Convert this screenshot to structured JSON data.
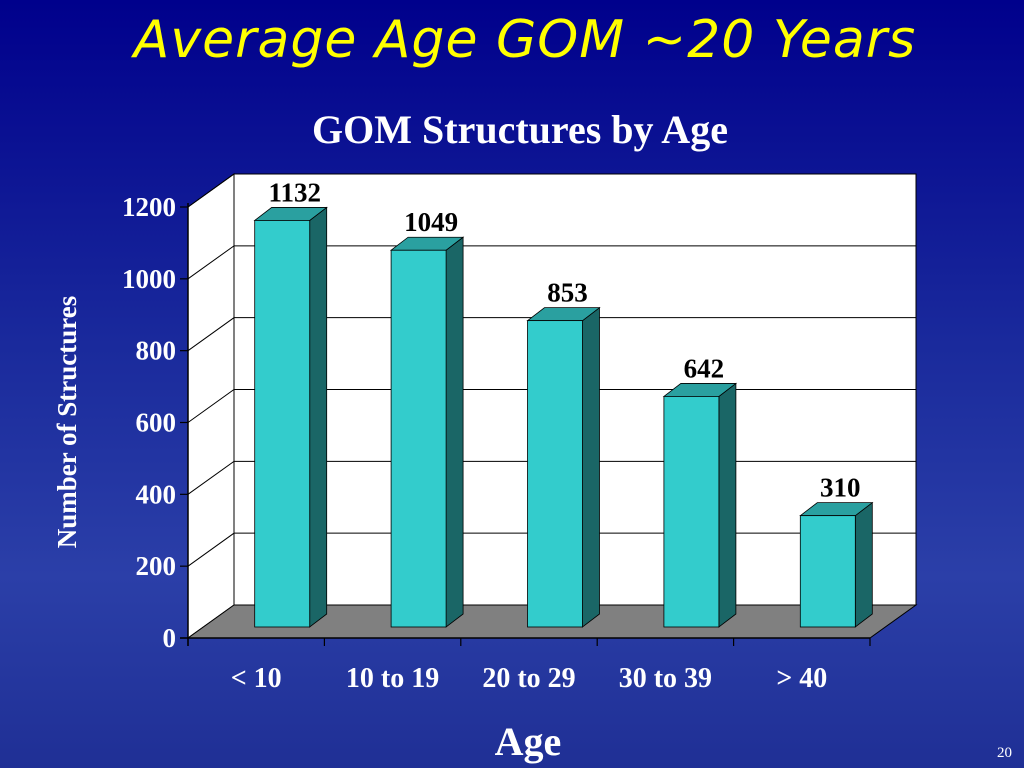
{
  "slide": {
    "title": "Average Age GOM ~20 Years",
    "page_number": "20"
  },
  "colors": {
    "background": "#1a2a9c",
    "title": "#ffff00",
    "bar_front": "#33cccc",
    "bar_side": "#1a6666",
    "bar_top": "#2aa0a0",
    "floor": "#808080",
    "plot_wall": "#ffffff"
  },
  "chart_data": {
    "type": "bar",
    "title": "GOM Structures by Age",
    "xlabel": "Age",
    "ylabel": "Number of Structures",
    "categories": [
      "< 10",
      "10 to 19",
      "20 to 29",
      "30 to 39",
      "> 40"
    ],
    "values": [
      1132,
      1049,
      853,
      642,
      310
    ],
    "data_labels": [
      "1132",
      "1049",
      "853",
      "642",
      "310"
    ],
    "ylim": [
      0,
      1200
    ],
    "yticks": [
      0,
      200,
      400,
      600,
      800,
      1000,
      1200
    ],
    "grid": true,
    "three_d": true,
    "legend": "none"
  }
}
